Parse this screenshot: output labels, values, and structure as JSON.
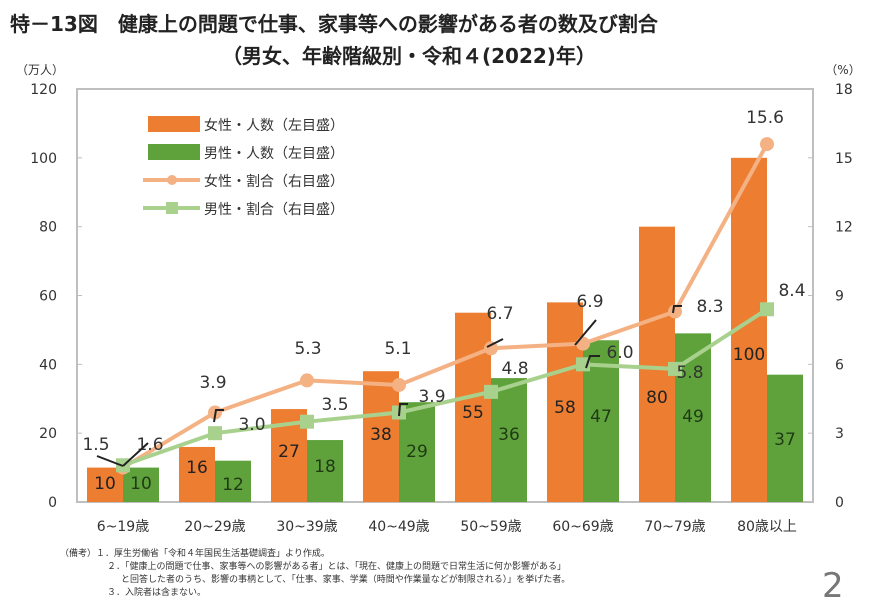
{
  "title": {
    "line1": "特－13図　健康上の問題で仕事、家事等への影響がある者の数及び割合",
    "line2": "（男女、年齢階級別・令和４(2022)年）"
  },
  "chart_data": {
    "type": "bar+line",
    "title": "特－13図　健康上の問題で仕事、家事等への影響がある者の数及び割合（男女、年齢階級別・令和４(2022)年）",
    "categories": [
      "6~19歳",
      "20~29歳",
      "30~39歳",
      "40~49歳",
      "50~59歳",
      "60~69歳",
      "70~79歳",
      "80歳以上"
    ],
    "left_axis": {
      "unit_label": "（万人）",
      "ylim": [
        0,
        120
      ],
      "ticks": [
        0,
        20,
        40,
        60,
        80,
        100,
        120
      ]
    },
    "right_axis": {
      "unit_label": "（%）",
      "ylim": [
        0,
        18
      ],
      "ticks": [
        0,
        3,
        6,
        9,
        12,
        15,
        18
      ]
    },
    "grid": false,
    "legend_position": "top-left",
    "series": [
      {
        "name": "女性・人数（左目盛）",
        "kind": "bar",
        "axis": "left",
        "color": "#ED7D31",
        "values": [
          10,
          16,
          27,
          38,
          55,
          58,
          80,
          100
        ],
        "labels": [
          "10",
          "16",
          "27",
          "38",
          "55",
          "58",
          "80",
          "100"
        ]
      },
      {
        "name": "男性・人数（左目盛）",
        "kind": "bar",
        "axis": "left",
        "color": "#5FA23C",
        "values": [
          10,
          12,
          18,
          29,
          36,
          47,
          49,
          37
        ],
        "labels": [
          "10",
          "12",
          "18",
          "29",
          "36",
          "47",
          "49",
          "37"
        ]
      },
      {
        "name": "女性・割合（右目盛）",
        "kind": "line",
        "marker": "circle",
        "axis": "right",
        "color": "#F4B183",
        "values": [
          1.5,
          3.9,
          5.3,
          5.1,
          6.7,
          6.9,
          8.3,
          15.6
        ],
        "labels": [
          "1.5",
          "3.9",
          "5.3",
          "5.1",
          "6.7",
          "6.9",
          "8.3",
          "15.6"
        ]
      },
      {
        "name": "男性・割合（右目盛）",
        "kind": "line",
        "marker": "square",
        "axis": "right",
        "color": "#A9D18E",
        "values": [
          1.6,
          3.0,
          3.5,
          3.9,
          4.8,
          6.0,
          5.8,
          8.4
        ],
        "labels": [
          "1.6",
          "3.0",
          "3.5",
          "3.9",
          "4.8",
          "6.0",
          "5.8",
          "8.4"
        ]
      }
    ]
  },
  "notes": [
    "（備考）１．厚生労働省「令和４年国民生活基礎調査」より作成。",
    "２．「健康上の問題で仕事、家事等への影響がある者」とは、「現在、健康上の問題で日常生活に何か影響がある」",
    "と回答した者のうち、影響の事柄として、「仕事、家事、学業（時間や作業量などが制限される）」を挙げた者。",
    "３．入院者は含まない。"
  ],
  "page_number": "2"
}
